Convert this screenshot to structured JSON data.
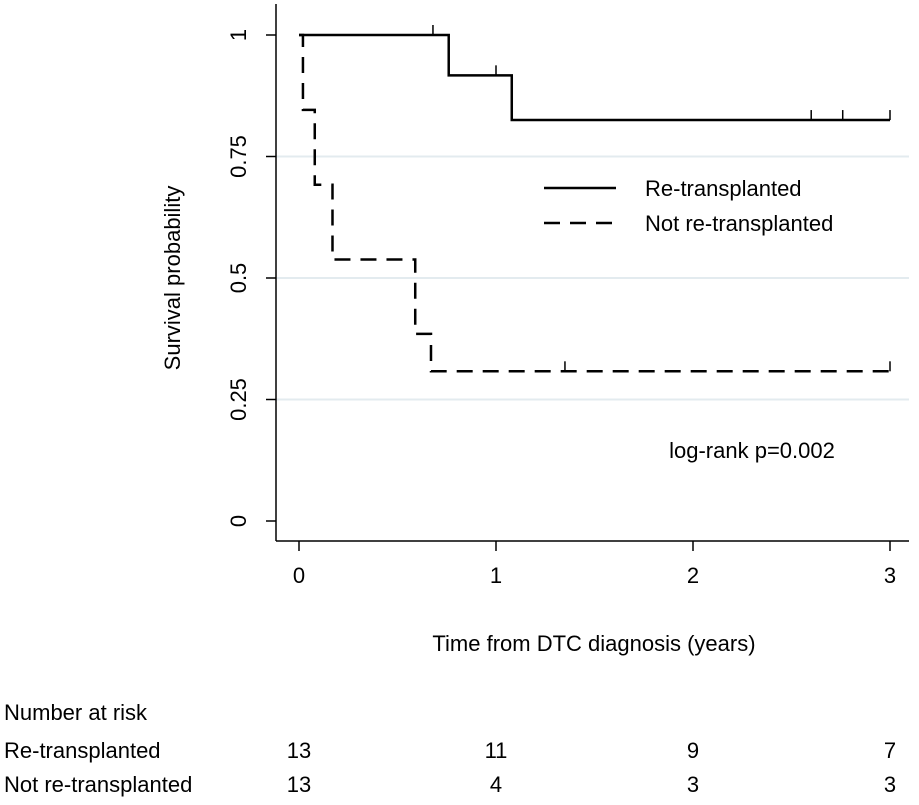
{
  "chart_data": {
    "type": "line",
    "subtype": "kaplan-meier",
    "xlabel": "Time from DTC diagnosis (years)",
    "ylabel": "Survival probability",
    "xlim": [
      0,
      3
    ],
    "ylim": [
      0,
      1
    ],
    "xticks": [
      0,
      1,
      2,
      3
    ],
    "xtick_labels": [
      "0",
      "1",
      "2",
      "3"
    ],
    "yticks": [
      0,
      0.25,
      0.5,
      0.75,
      1
    ],
    "ytick_labels": [
      "0",
      "0.25",
      "0.5",
      "0.75",
      "1"
    ],
    "grid": "horizontal",
    "legend_position": "right",
    "series": [
      {
        "name": "Re-transplanted",
        "style": "solid",
        "color": "#000000",
        "steps": [
          {
            "x": 0,
            "y": 1
          },
          {
            "x": 0.76,
            "y": 0.917
          },
          {
            "x": 1.08,
            "y": 0.825
          }
        ],
        "end_x": 3,
        "censored": [
          0.68,
          1.0,
          2.6,
          2.76,
          3.0
        ]
      },
      {
        "name": "Not re-transplanted",
        "style": "dashed",
        "color": "#000000",
        "steps": [
          {
            "x": 0,
            "y": 1
          },
          {
            "x": 0.02,
            "y": 0.846
          },
          {
            "x": 0.08,
            "y": 0.692
          },
          {
            "x": 0.17,
            "y": 0.538
          },
          {
            "x": 0.59,
            "y": 0.385
          },
          {
            "x": 0.67,
            "y": 0.308
          }
        ],
        "end_x": 3,
        "censored": [
          1.35,
          3.0
        ]
      }
    ],
    "annotation": "log-rank p=0.002",
    "risk_table": {
      "title": "Number at risk",
      "times": [
        0,
        1,
        2,
        3
      ],
      "rows": [
        {
          "label": "Re-transplanted",
          "values": [
            "13",
            "11",
            "9",
            "7"
          ]
        },
        {
          "label": "Not re-transplanted",
          "values": [
            "13",
            "4",
            "3",
            "3"
          ]
        }
      ]
    }
  }
}
